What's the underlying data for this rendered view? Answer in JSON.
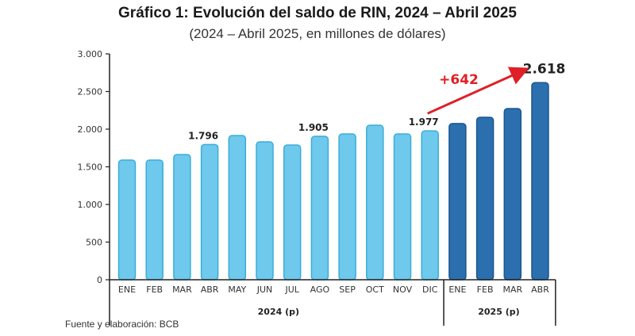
{
  "chart_data": {
    "type": "bar",
    "title": "Gráfico 1: Evolución del saldo de RIN, 2024 – Abril 2025",
    "subtitle": "(2024 – Abril 2025, en millones de dólares)",
    "xlabel": "",
    "ylabel": "",
    "ylim": [
      0,
      3000
    ],
    "yticks": [
      0,
      500,
      1000,
      1500,
      2000,
      2500,
      3000
    ],
    "ytick_labels": [
      "0",
      "500",
      "1.000",
      "1.500",
      "2.000",
      "2.500",
      "3.000"
    ],
    "grid": false,
    "categories": [
      "ENE",
      "FEB",
      "MAR",
      "ABR",
      "MAY",
      "JUN",
      "JUL",
      "AGO",
      "SEP",
      "OCT",
      "NOV",
      "DIC",
      "ENE",
      "FEB",
      "MAR",
      "ABR"
    ],
    "groups": [
      {
        "label": "2024 (p)",
        "count": 12,
        "color": "#6ec9ec",
        "edge": "#3aaed8"
      },
      {
        "label": "2025 (p)",
        "count": 4,
        "color": "#2b6fae",
        "edge": "#1c5690"
      }
    ],
    "values": [
      1590,
      1590,
      1663,
      1796,
      1916,
      1832,
      1790,
      1905,
      1937,
      2053,
      1937,
      1977,
      2075,
      2158,
      2274,
      2618
    ],
    "data_labels": [
      {
        "index": 3,
        "text": "1.796"
      },
      {
        "index": 7,
        "text": "1.905"
      },
      {
        "index": 11,
        "text": "1.977"
      },
      {
        "index": 15,
        "text": "2.618"
      }
    ],
    "annotation": {
      "text": "+642",
      "from_index": 11,
      "to_index": 15,
      "color": "#e01f26"
    }
  },
  "source_note": "Fuente y elaboración: BCB"
}
